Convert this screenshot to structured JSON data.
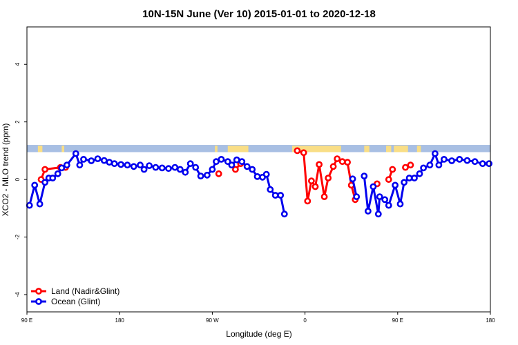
{
  "colors": {
    "land": "#ff0000",
    "ocean": "#0000ee",
    "band_ocean": "#a8bfe3",
    "band_land": "#f9de86"
  },
  "chart_data": {
    "type": "line",
    "title": "10N-15N June (Ver 10)   2015-01-01 to 2020-12-18",
    "xlabel": "Longitude (deg E)",
    "ylabel": "XCO2 - MLO trend (ppm)",
    "xlim": [
      90,
      450
    ],
    "ylim": [
      -4.6,
      5.3
    ],
    "grid": false,
    "legend_position": "bottom-left",
    "y_ticks": [
      -4,
      -2,
      0,
      2,
      4
    ],
    "y_tick_labels": [
      "-4",
      "-2",
      "0",
      "2",
      "4"
    ],
    "x_ticks": [
      90,
      162,
      234,
      306,
      378,
      450
    ],
    "x_tick_labels": [
      "90 E",
      "180",
      "90 W",
      "0",
      "90 E",
      "180"
    ],
    "band": {
      "ymin": 0.95,
      "ymax": 1.2,
      "land_segments": [
        [
          98.5,
          102
        ],
        [
          117,
          119
        ],
        [
          236,
          238
        ],
        [
          246,
          262
        ],
        [
          296,
          334
        ],
        [
          352,
          356
        ],
        [
          369,
          373
        ],
        [
          375,
          386
        ],
        [
          393,
          396
        ]
      ]
    },
    "series": [
      {
        "name": "Land (Nadir&Glint)",
        "segments": [
          [
            [
              101,
              0.0
            ],
            [
              104,
              0.35
            ],
            [
              116,
              0.42
            ],
            [
              120,
              0.42
            ]
          ],
          [
            [
              239,
              0.2
            ]
          ],
          [
            [
              252,
              0.35
            ],
            [
              256,
              0.55
            ]
          ],
          [
            [
              300,
              1.0
            ],
            [
              305,
              0.93
            ],
            [
              308,
              -0.75
            ],
            [
              311,
              -0.05
            ],
            [
              314,
              -0.25
            ],
            [
              317,
              0.52
            ],
            [
              321,
              -0.6
            ],
            [
              324,
              0.05
            ],
            [
              328,
              0.45
            ],
            [
              331,
              0.72
            ],
            [
              335,
              0.62
            ],
            [
              339,
              0.6
            ],
            [
              342,
              -0.2
            ],
            [
              345,
              -0.7
            ]
          ],
          [
            [
              362,
              -0.15
            ]
          ],
          [
            [
              371,
              0.0
            ],
            [
              374,
              0.35
            ]
          ],
          [
            [
              384,
              0.42
            ],
            [
              388,
              0.5
            ]
          ]
        ]
      },
      {
        "name": "Ocean (Glint)",
        "segments": [
          [
            [
              92,
              -0.9
            ],
            [
              96,
              -0.2
            ],
            [
              100,
              -0.85
            ],
            [
              104,
              -0.1
            ],
            [
              107,
              0.05
            ],
            [
              110,
              0.05
            ],
            [
              114,
              0.2
            ],
            [
              117,
              0.4
            ],
            [
              121,
              0.5
            ],
            [
              128,
              0.9
            ],
            [
              131,
              0.5
            ],
            [
              134,
              0.7
            ],
            [
              140,
              0.65
            ],
            [
              145,
              0.72
            ],
            [
              150,
              0.66
            ],
            [
              154,
              0.6
            ],
            [
              158,
              0.55
            ],
            [
              163,
              0.52
            ],
            [
              168,
              0.5
            ],
            [
              173,
              0.45
            ],
            [
              178,
              0.5
            ],
            [
              181,
              0.35
            ],
            [
              185,
              0.48
            ],
            [
              190,
              0.42
            ],
            [
              195,
              0.4
            ],
            [
              200,
              0.38
            ],
            [
              205,
              0.42
            ],
            [
              209,
              0.35
            ],
            [
              213,
              0.25
            ],
            [
              217,
              0.55
            ],
            [
              221,
              0.42
            ],
            [
              225,
              0.12
            ],
            [
              230,
              0.15
            ],
            [
              234,
              0.35
            ],
            [
              237,
              0.62
            ],
            [
              241,
              0.7
            ],
            [
              246,
              0.62
            ],
            [
              249,
              0.5
            ],
            [
              253,
              0.68
            ],
            [
              257,
              0.62
            ],
            [
              261,
              0.45
            ],
            [
              265,
              0.35
            ],
            [
              269,
              0.1
            ],
            [
              273,
              0.08
            ],
            [
              276,
              0.18
            ],
            [
              279,
              -0.35
            ],
            [
              283,
              -0.55
            ],
            [
              287,
              -0.55
            ],
            [
              290,
              -1.2
            ]
          ],
          [
            [
              343,
              0.02
            ],
            [
              346,
              -0.6
            ]
          ],
          [
            [
              352,
              0.12
            ],
            [
              355,
              -1.1
            ],
            [
              359,
              -0.25
            ],
            [
              363,
              -1.2
            ],
            [
              364,
              -0.6
            ],
            [
              368,
              -0.7
            ],
            [
              371,
              -0.9
            ],
            [
              376,
              -0.2
            ],
            [
              380,
              -0.85
            ],
            [
              383,
              -0.1
            ],
            [
              387,
              0.05
            ],
            [
              391,
              0.05
            ],
            [
              395,
              0.2
            ],
            [
              398,
              0.4
            ],
            [
              403,
              0.5
            ],
            [
              407,
              0.9
            ],
            [
              410,
              0.5
            ],
            [
              414,
              0.7
            ],
            [
              420,
              0.65
            ],
            [
              426,
              0.7
            ],
            [
              432,
              0.66
            ],
            [
              438,
              0.62
            ],
            [
              444,
              0.55
            ],
            [
              449,
              0.55
            ]
          ]
        ]
      }
    ]
  }
}
